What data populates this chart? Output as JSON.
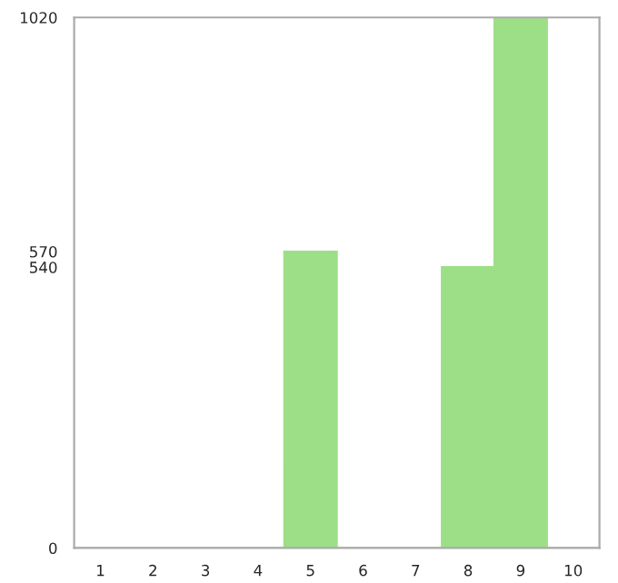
{
  "chart_data": {
    "type": "bar",
    "categories": [
      "1",
      "2",
      "3",
      "4",
      "5",
      "6",
      "7",
      "8",
      "9",
      "10"
    ],
    "values": [
      0,
      0,
      0,
      0,
      570,
      0,
      0,
      540,
      1020,
      0
    ],
    "color": "#9ddf87",
    "ylim": [
      0,
      1020
    ],
    "yticks": [
      0,
      540,
      570,
      1020
    ],
    "grid": false,
    "legend": false
  }
}
